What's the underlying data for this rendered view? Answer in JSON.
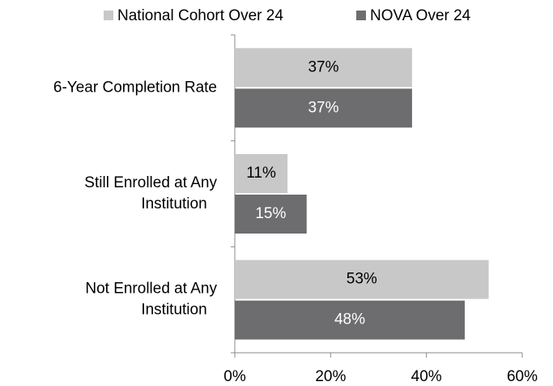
{
  "chart_data": {
    "type": "bar",
    "orientation": "horizontal",
    "categories": [
      "6-Year Completion Rate",
      "Still Enrolled at Any Institution",
      "Not Enrolled at Any Institution"
    ],
    "series": [
      {
        "name": "National Cohort Over 24",
        "color": "#c8c8c8",
        "label_color": "#000000",
        "values": [
          37,
          11,
          53
        ],
        "value_labels": [
          "37%",
          "11%",
          "53%"
        ]
      },
      {
        "name": "NOVA Over 24",
        "color": "#6d6d6f",
        "label_color": "#ffffff",
        "values": [
          37,
          15,
          48
        ],
        "value_labels": [
          "37%",
          "15%",
          "48%"
        ]
      }
    ],
    "xlim": [
      0,
      60
    ],
    "xticks": [
      {
        "value": 0,
        "label": "0%"
      },
      {
        "value": 20,
        "label": "20%"
      },
      {
        "value": 40,
        "label": "40%"
      },
      {
        "value": 60,
        "label": "60%"
      }
    ],
    "legend": "top",
    "grid": false
  }
}
